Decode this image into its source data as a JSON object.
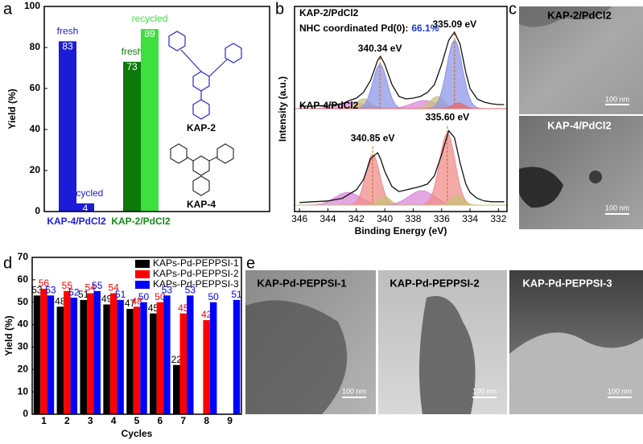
{
  "chart_data": [
    {
      "type": "bar",
      "panel": "a",
      "ylabel": "Yield (%)",
      "categories": [
        "KAP-4/PdCl2",
        "KAP-2/PdCl2"
      ],
      "category_colors": [
        "#1c1cd8",
        "#128a12"
      ],
      "series": [
        {
          "name": "fresh",
          "colors": [
            "#1c1cd8",
            "#0b7a0b"
          ],
          "values": [
            83,
            73
          ]
        },
        {
          "name": "recycled",
          "colors": [
            "#1c1cd8",
            "#3de03d"
          ],
          "values": [
            4,
            89
          ]
        }
      ],
      "structures": [
        "KAP-2",
        "KAP-4"
      ],
      "ylim": [
        0,
        100
      ],
      "yticks": [
        0,
        20,
        40,
        60,
        80,
        100
      ]
    },
    {
      "type": "spectrum",
      "panel": "b",
      "xlabel": "Binding Energy (eV)",
      "ylabel": "Intensity (a.u.)",
      "xlim": [
        346.35,
        331.4
      ],
      "xticks": [
        346,
        344,
        342,
        340,
        338,
        336,
        334,
        332
      ],
      "x": [
        346,
        345,
        344,
        343,
        342.5,
        342,
        341.5,
        341,
        340.5,
        340.3,
        340,
        339.5,
        339,
        338.5,
        338,
        337.5,
        337,
        336.5,
        336,
        335.5,
        335.1,
        334.7,
        334.3,
        334,
        333.5,
        333,
        332.5,
        332,
        331.6
      ],
      "series": [
        {
          "name": "KAP-2/PdCl2",
          "note": "NHC coordinated Pd(0):",
          "note_value": "66.1%",
          "color": "#111111",
          "values": [
            0.03,
            0.03,
            0.04,
            0.06,
            0.1,
            0.13,
            0.2,
            0.35,
            0.6,
            0.65,
            0.55,
            0.3,
            0.15,
            0.12,
            0.13,
            0.15,
            0.2,
            0.3,
            0.55,
            0.85,
            0.95,
            0.8,
            0.45,
            0.25,
            0.12,
            0.08,
            0.06,
            0.05,
            0.05
          ],
          "fits": [
            {
              "center": 342.3,
              "height": 0.08,
              "width": 0.9,
              "color": "#d98ad9"
            },
            {
              "center": 341.5,
              "height": 0.12,
              "width": 0.5,
              "color": "#c8c27a"
            },
            {
              "center": 340.34,
              "height": 0.55,
              "width": 0.5,
              "color": "#8f96e8",
              "label": "340.34 eV"
            },
            {
              "center": 337.2,
              "height": 0.1,
              "width": 0.9,
              "color": "#d98ad9"
            },
            {
              "center": 336.3,
              "height": 0.15,
              "width": 0.5,
              "color": "#c8c27a"
            },
            {
              "center": 335.09,
              "height": 0.85,
              "width": 0.55,
              "color": "#8f96e8",
              "label": "335.09 eV"
            },
            {
              "center": 334.8,
              "height": 0.07,
              "width": 0.4,
              "color": "#e66a6a"
            }
          ]
        },
        {
          "name": "KAP-4/PdCl2",
          "color": "#111111",
          "values": [
            0.03,
            0.04,
            0.05,
            0.08,
            0.13,
            0.18,
            0.3,
            0.55,
            0.62,
            0.55,
            0.4,
            0.22,
            0.16,
            0.18,
            0.2,
            0.22,
            0.25,
            0.35,
            0.6,
            0.88,
            0.8,
            0.5,
            0.25,
            0.15,
            0.08,
            0.05,
            0.04,
            0.04,
            0.04
          ],
          "fits": [
            {
              "center": 342.6,
              "height": 0.15,
              "width": 0.9,
              "color": "#d98ad9"
            },
            {
              "center": 340.85,
              "height": 0.6,
              "width": 0.5,
              "color": "#f08c8c",
              "label": "340.85 eV"
            },
            {
              "center": 340.0,
              "height": 0.1,
              "width": 0.4,
              "color": "#c8c27a"
            },
            {
              "center": 337.4,
              "height": 0.17,
              "width": 0.9,
              "color": "#d98ad9"
            },
            {
              "center": 335.6,
              "height": 0.85,
              "width": 0.55,
              "color": "#f08c8c",
              "label": "335.60 eV"
            },
            {
              "center": 334.9,
              "height": 0.12,
              "width": 0.4,
              "color": "#c8c27a"
            }
          ]
        }
      ]
    },
    {
      "type": "bar",
      "panel": "d",
      "xlabel": "Cycles",
      "ylabel": "Yield (%)",
      "categories": [
        "1",
        "2",
        "3",
        "4",
        "5",
        "6",
        "7",
        "8",
        "9"
      ],
      "series": [
        {
          "name": "KAPs-Pd-PEPPSI-1",
          "color": "#000000",
          "values": [
            53,
            48,
            51,
            49,
            47,
            45,
            22,
            null,
            null
          ]
        },
        {
          "name": "KAPs-Pd-PEPPSI-2",
          "color": "#ff0000",
          "values": [
            56,
            55,
            54,
            54,
            48,
            50,
            45,
            42,
            null
          ]
        },
        {
          "name": "KAPs-Pd-PEPPSI-3",
          "color": "#0000ff",
          "values": [
            53,
            52,
            55,
            51,
            50,
            53,
            53,
            50,
            51
          ]
        }
      ],
      "legend": "upper right",
      "ylim": [
        0,
        70
      ],
      "yticks": [
        0,
        10,
        20,
        30,
        40,
        50,
        60,
        70
      ]
    }
  ],
  "images": {
    "c": {
      "panel": "c",
      "items": [
        {
          "title": "KAP-2/PdCl2",
          "scale": "100 nm"
        },
        {
          "title": "KAP-4/PdCl2",
          "scale": "100 nm"
        }
      ]
    },
    "e": {
      "panel": "e",
      "items": [
        {
          "title": "KAP-Pd-PEPPSI-1",
          "scale": "100 nm"
        },
        {
          "title": "KAP-Pd-PEPPSI-2",
          "scale": "100 nm"
        },
        {
          "title": "KAP-Pd-PEPPSI-3",
          "scale": "100 nm"
        }
      ]
    }
  }
}
